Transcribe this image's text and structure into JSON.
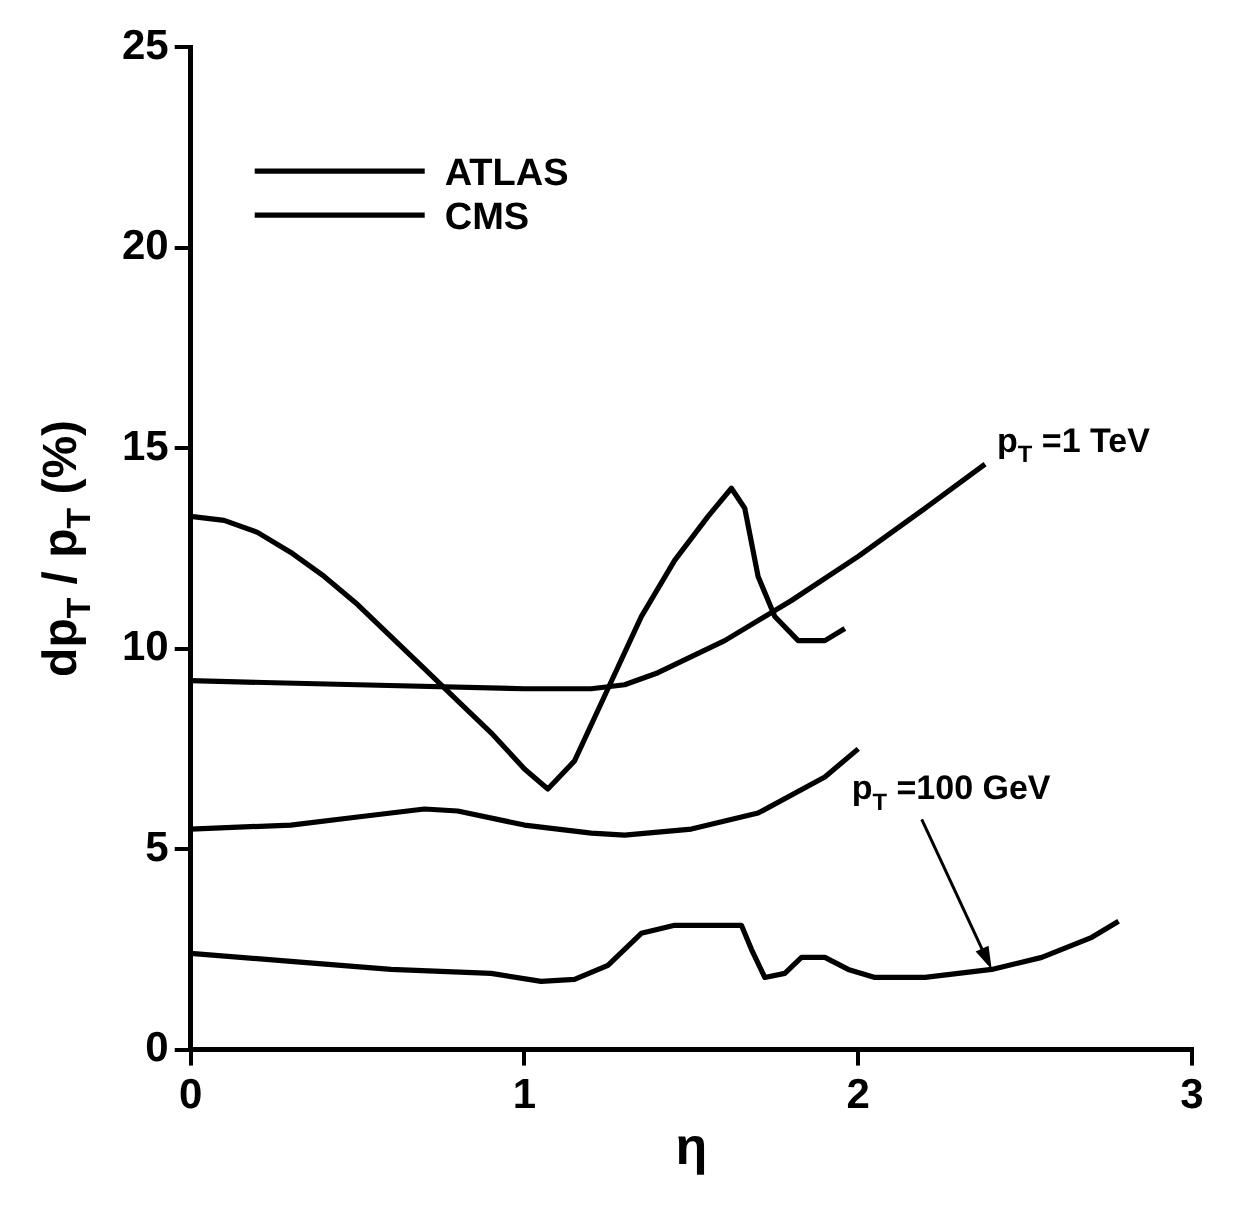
{
  "chart_data": {
    "type": "line",
    "xlabel": "η",
    "ylabel": "dp$_{T}$ / p$_{T}$ (%)",
    "xlim": [
      0,
      3
    ],
    "xticks": [
      0,
      1,
      2,
      3
    ],
    "ylim": [
      0,
      25
    ],
    "yticks": [
      0,
      5,
      10,
      15,
      20,
      25
    ],
    "grid": false,
    "legend": "top left",
    "marker": "none",
    "line_style": "solid",
    "series": [
      {
        "name": "ATLAS",
        "color": "#000000",
        "x": [
          0,
          0.1,
          0.2,
          0.3,
          0.4,
          0.5,
          0.6,
          0.7,
          0.8,
          0.9,
          1.0,
          1.07,
          1.15,
          1.25,
          1.35,
          1.45,
          1.55,
          1.62,
          1.66,
          1.7,
          1.75,
          1.82,
          1.9,
          1.96
        ],
        "values": [
          13.3,
          13.2,
          12.9,
          12.4,
          11.8,
          11.1,
          10.3,
          9.5,
          8.7,
          7.9,
          7.0,
          6.5,
          7.2,
          9.0,
          10.8,
          12.2,
          13.3,
          14.0,
          13.5,
          11.8,
          10.8,
          10.2,
          10.2,
          10.5
        ]
      },
      {
        "name": "CMS",
        "color": "#000000",
        "x": [
          0,
          0.5,
          1.0,
          1.2,
          1.3,
          1.4,
          1.6,
          1.8,
          2.0,
          2.2,
          2.38
        ],
        "values": [
          9.2,
          9.1,
          9.0,
          9.0,
          9.1,
          9.4,
          10.2,
          11.2,
          12.3,
          13.5,
          14.6
        ]
      },
      {
        "color": "#000000",
        "x": [
          0,
          0.3,
          0.5,
          0.7,
          0.8,
          1.0,
          1.2,
          1.3,
          1.5,
          1.7,
          1.9,
          2.0
        ],
        "values": [
          5.5,
          5.6,
          5.8,
          6.0,
          5.95,
          5.6,
          5.4,
          5.35,
          5.5,
          5.9,
          6.8,
          7.5
        ]
      },
      {
        "color": "#000000",
        "x": [
          0,
          0.3,
          0.6,
          0.9,
          1.05,
          1.15,
          1.25,
          1.35,
          1.45,
          1.55,
          1.65,
          1.68,
          1.72,
          1.78,
          1.83,
          1.9,
          1.97,
          2.05,
          2.2,
          2.4,
          2.55,
          2.7,
          2.78
        ],
        "values": [
          2.4,
          2.2,
          2.0,
          1.9,
          1.7,
          1.75,
          2.1,
          2.9,
          3.1,
          3.1,
          3.1,
          2.5,
          1.8,
          1.9,
          2.3,
          2.3,
          2.0,
          1.8,
          1.8,
          2.0,
          2.3,
          2.8,
          3.2
        ]
      }
    ],
    "annotations": [
      {
        "text": "p$_{T}$ =1 TeV",
        "x": 2.38,
        "y": 14.6
      },
      {
        "text": "p$_{T}$ =100 GeV",
        "x": 2.4,
        "y": 2.0
      }
    ]
  }
}
